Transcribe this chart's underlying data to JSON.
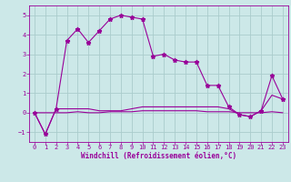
{
  "xlabel": "Windchill (Refroidissement éolien,°C)",
  "background_color": "#cce8e8",
  "grid_color": "#aacccc",
  "line_color": "#990099",
  "x": [
    0,
    1,
    2,
    3,
    4,
    5,
    6,
    7,
    8,
    9,
    10,
    11,
    12,
    13,
    14,
    15,
    16,
    17,
    18,
    19,
    20,
    21,
    22,
    23
  ],
  "y_temperature": [
    0.0,
    -1.1,
    0.2,
    3.7,
    4.3,
    3.6,
    4.2,
    4.8,
    5.0,
    4.9,
    4.8,
    2.9,
    3.0,
    2.7,
    2.6,
    2.6,
    1.4,
    1.4,
    0.3,
    -0.1,
    -0.2,
    0.1,
    1.9,
    0.7
  ],
  "y_windchill": [
    0.0,
    -1.1,
    0.2,
    0.2,
    0.2,
    0.2,
    0.1,
    0.1,
    0.1,
    0.2,
    0.3,
    0.3,
    0.3,
    0.3,
    0.3,
    0.3,
    0.3,
    0.3,
    0.2,
    -0.1,
    -0.2,
    0.1,
    0.9,
    0.7
  ],
  "y_diff": [
    0.0,
    0.0,
    0.0,
    0.0,
    0.05,
    0.0,
    0.0,
    0.05,
    0.05,
    0.05,
    0.1,
    0.1,
    0.1,
    0.1,
    0.1,
    0.1,
    0.05,
    0.05,
    0.05,
    0.0,
    0.0,
    0.0,
    0.05,
    0.0
  ],
  "ylim": [
    -1.5,
    5.5
  ],
  "xlim": [
    -0.5,
    23.5
  ],
  "yticks": [
    -1,
    0,
    1,
    2,
    3,
    4,
    5
  ],
  "xticks": [
    0,
    1,
    2,
    3,
    4,
    5,
    6,
    7,
    8,
    9,
    10,
    11,
    12,
    13,
    14,
    15,
    16,
    17,
    18,
    19,
    20,
    21,
    22,
    23
  ],
  "tick_fontsize": 5.0,
  "xlabel_fontsize": 5.5
}
